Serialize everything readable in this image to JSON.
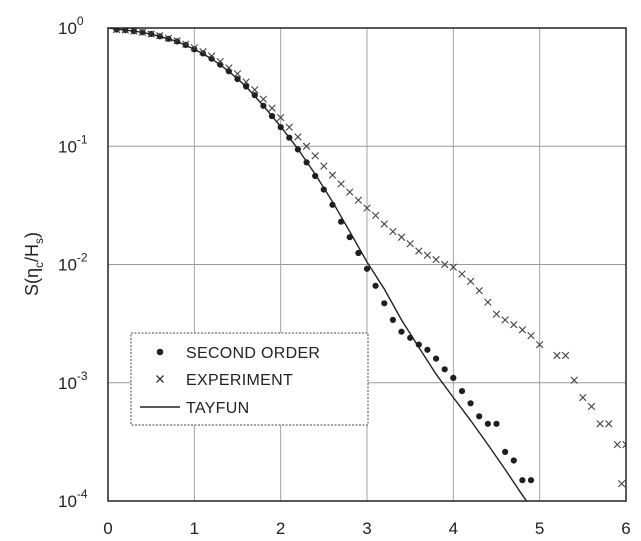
{
  "chart_data": {
    "type": "scatter",
    "title": "",
    "xlabel": "",
    "ylabel": "S(ηc/Hs)",
    "ylabel_parts": {
      "main": "S(η",
      "sub1": "c",
      "mid": "/H",
      "sub2": "s",
      "end": ")"
    },
    "xlim": [
      0,
      6
    ],
    "ylim": [
      0.0001,
      1
    ],
    "y_scale": "log",
    "grid": true,
    "legend_position": "lower-left",
    "x_ticks": [
      "0",
      "1",
      "2",
      "3",
      "4",
      "5",
      "6"
    ],
    "y_ticks": [
      {
        "base": "10",
        "exp": "0",
        "value": 1
      },
      {
        "base": "10",
        "exp": "-1",
        "value": 0.1
      },
      {
        "base": "10",
        "exp": "-2",
        "value": 0.01
      },
      {
        "base": "10",
        "exp": "-3",
        "value": 0.001
      },
      {
        "base": "10",
        "exp": "-4",
        "value": 0.0001
      }
    ],
    "series": [
      {
        "name": "SECOND ORDER",
        "marker": "dot",
        "points": [
          [
            0.1,
            0.97
          ],
          [
            0.2,
            0.96
          ],
          [
            0.3,
            0.94
          ],
          [
            0.4,
            0.92
          ],
          [
            0.5,
            0.89
          ],
          [
            0.6,
            0.85
          ],
          [
            0.7,
            0.81
          ],
          [
            0.8,
            0.77
          ],
          [
            0.9,
            0.72
          ],
          [
            1.0,
            0.66
          ],
          [
            1.1,
            0.61
          ],
          [
            1.2,
            0.55
          ],
          [
            1.3,
            0.49
          ],
          [
            1.4,
            0.43
          ],
          [
            1.5,
            0.37
          ],
          [
            1.6,
            0.32
          ],
          [
            1.7,
            0.27
          ],
          [
            1.8,
            0.22
          ],
          [
            1.9,
            0.18
          ],
          [
            2.0,
            0.145
          ],
          [
            2.1,
            0.118
          ],
          [
            2.2,
            0.094
          ],
          [
            2.3,
            0.073
          ],
          [
            2.4,
            0.056
          ],
          [
            2.5,
            0.043
          ],
          [
            2.6,
            0.032
          ],
          [
            2.7,
            0.023
          ],
          [
            2.8,
            0.017
          ],
          [
            2.9,
            0.0125
          ],
          [
            3.0,
            0.0092
          ],
          [
            3.1,
            0.0066
          ],
          [
            3.2,
            0.0047
          ],
          [
            3.3,
            0.0034
          ],
          [
            3.4,
            0.0027
          ],
          [
            3.5,
            0.0024
          ],
          [
            3.6,
            0.0021
          ],
          [
            3.7,
            0.0019
          ],
          [
            3.8,
            0.0016
          ],
          [
            3.9,
            0.0013
          ],
          [
            4.0,
            0.0011
          ],
          [
            4.1,
            0.00085
          ],
          [
            4.2,
            0.00067
          ],
          [
            4.3,
            0.00052
          ],
          [
            4.4,
            0.00045
          ],
          [
            4.5,
            0.00045
          ],
          [
            4.6,
            0.00026
          ],
          [
            4.7,
            0.00022
          ],
          [
            4.8,
            0.00015
          ],
          [
            4.9,
            0.00015
          ]
        ]
      },
      {
        "name": "EXPERIMENT",
        "marker": "cross",
        "points": [
          [
            0.1,
            0.97
          ],
          [
            0.2,
            0.96
          ],
          [
            0.3,
            0.94
          ],
          [
            0.4,
            0.92
          ],
          [
            0.5,
            0.89
          ],
          [
            0.6,
            0.86
          ],
          [
            0.7,
            0.82
          ],
          [
            0.8,
            0.78
          ],
          [
            0.9,
            0.73
          ],
          [
            1.0,
            0.68
          ],
          [
            1.1,
            0.63
          ],
          [
            1.2,
            0.58
          ],
          [
            1.3,
            0.52
          ],
          [
            1.4,
            0.46
          ],
          [
            1.5,
            0.41
          ],
          [
            1.6,
            0.35
          ],
          [
            1.7,
            0.3
          ],
          [
            1.8,
            0.25
          ],
          [
            1.9,
            0.21
          ],
          [
            2.0,
            0.175
          ],
          [
            2.1,
            0.145
          ],
          [
            2.2,
            0.12
          ],
          [
            2.3,
            0.1
          ],
          [
            2.4,
            0.083
          ],
          [
            2.5,
            0.068
          ],
          [
            2.6,
            0.057
          ],
          [
            2.7,
            0.048
          ],
          [
            2.8,
            0.041
          ],
          [
            2.9,
            0.035
          ],
          [
            3.0,
            0.03
          ],
          [
            3.1,
            0.026
          ],
          [
            3.2,
            0.022
          ],
          [
            3.3,
            0.019
          ],
          [
            3.4,
            0.017
          ],
          [
            3.5,
            0.015
          ],
          [
            3.6,
            0.013
          ],
          [
            3.7,
            0.012
          ],
          [
            3.8,
            0.011
          ],
          [
            3.9,
            0.01
          ],
          [
            4.0,
            0.0095
          ],
          [
            4.1,
            0.0083
          ],
          [
            4.2,
            0.0072
          ],
          [
            4.3,
            0.006
          ],
          [
            4.4,
            0.0048
          ],
          [
            4.5,
            0.0038
          ],
          [
            4.6,
            0.0034
          ],
          [
            4.7,
            0.0031
          ],
          [
            4.8,
            0.0028
          ],
          [
            4.9,
            0.0025
          ],
          [
            5.0,
            0.0021
          ],
          [
            5.2,
            0.0017
          ],
          [
            5.3,
            0.0017
          ],
          [
            5.4,
            0.00105
          ],
          [
            5.5,
            0.00075
          ],
          [
            5.6,
            0.00063
          ],
          [
            5.7,
            0.00045
          ],
          [
            5.8,
            0.00045
          ],
          [
            5.9,
            0.0003
          ],
          [
            6.0,
            0.0003
          ],
          [
            5.95,
            0.00014
          ]
        ]
      },
      {
        "name": "TAYFUN",
        "marker": "line",
        "points": [
          [
            0.0,
            1.0
          ],
          [
            0.2,
            0.96
          ],
          [
            0.4,
            0.92
          ],
          [
            0.6,
            0.85
          ],
          [
            0.8,
            0.77
          ],
          [
            1.0,
            0.66
          ],
          [
            1.2,
            0.55
          ],
          [
            1.4,
            0.43
          ],
          [
            1.6,
            0.32
          ],
          [
            1.8,
            0.22
          ],
          [
            2.0,
            0.147
          ],
          [
            2.2,
            0.095
          ],
          [
            2.4,
            0.058
          ],
          [
            2.6,
            0.034
          ],
          [
            2.8,
            0.019
          ],
          [
            3.0,
            0.0105
          ],
          [
            3.2,
            0.0062
          ],
          [
            3.4,
            0.0034
          ],
          [
            3.6,
            0.002
          ],
          [
            3.8,
            0.00118
          ],
          [
            4.0,
            0.00075
          ],
          [
            4.2,
            0.00048
          ],
          [
            4.4,
            0.0003
          ],
          [
            4.6,
            0.000185
          ],
          [
            4.8,
            0.000112
          ],
          [
            4.85,
            0.0001
          ]
        ]
      }
    ]
  }
}
